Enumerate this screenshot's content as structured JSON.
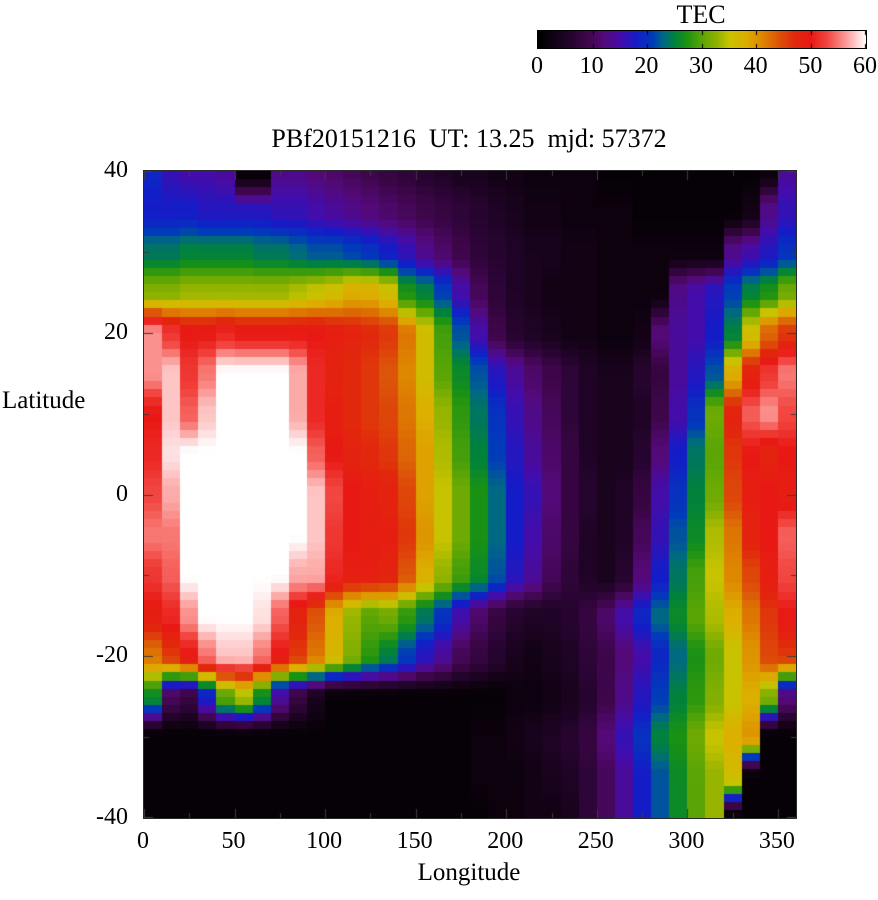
{
  "title": "PBf20151216  UT: 13.25  mjd: 57372",
  "colorbar": {
    "label": "TEC",
    "min": 0,
    "max": 60,
    "tick_labels": [
      "0",
      "10",
      "20",
      "30",
      "40",
      "50",
      "60"
    ],
    "tick_values": [
      0,
      10,
      20,
      30,
      40,
      50,
      60
    ]
  },
  "axes": {
    "x": {
      "label": "Longitude",
      "min": 0,
      "max": 360,
      "major_tick_values": [
        0,
        50,
        100,
        150,
        200,
        250,
        300,
        350
      ],
      "major_tick_labels": [
        "0",
        "50",
        "100",
        "150",
        "200",
        "250",
        "300",
        "350"
      ],
      "minor_step": 25
    },
    "y": {
      "label": "Latitude",
      "min": -40,
      "max": 40,
      "major_tick_values": [
        40,
        20,
        0,
        -20,
        -40
      ],
      "major_tick_labels": [
        "40",
        "20",
        "0",
        "-20",
        "-40"
      ],
      "minor_step": 10
    }
  },
  "chart_data": {
    "type": "heatmap",
    "title": "PBf20151216  UT: 13.25  mjd: 57372",
    "xlabel": "Longitude",
    "ylabel": "Latitude",
    "colorbar_label": "TEC",
    "xlim": [
      0,
      360
    ],
    "ylim": [
      -40,
      40
    ],
    "zlim": [
      0,
      60
    ],
    "units": "TECU",
    "lon_step": 10,
    "lat_rows": [
      40,
      35,
      30,
      25,
      20,
      15,
      10,
      5,
      0,
      -5,
      -10,
      -15,
      -20,
      -25,
      -30,
      -35,
      -40
    ],
    "values": [
      [
        19,
        16,
        15,
        15,
        14,
        1,
        1,
        13,
        13,
        12,
        11,
        10,
        9,
        8,
        7,
        6,
        5,
        4,
        4,
        3,
        3,
        2,
        2,
        2,
        2,
        1,
        1,
        1,
        1,
        1,
        1,
        1,
        1,
        1,
        2,
        14
      ],
      [
        18,
        18,
        18,
        17,
        17,
        17,
        17,
        16,
        16,
        15,
        14,
        13,
        12,
        11,
        10,
        9,
        8,
        7,
        6,
        5,
        4,
        3,
        3,
        2,
        2,
        2,
        2,
        1,
        1,
        1,
        1,
        1,
        1,
        3,
        13,
        16
      ],
      [
        24,
        24,
        25,
        25,
        25,
        25,
        24,
        24,
        23,
        22,
        22,
        21,
        20,
        18,
        16,
        13,
        11,
        9,
        7,
        6,
        5,
        4,
        4,
        3,
        3,
        2,
        2,
        2,
        2,
        2,
        2,
        2,
        13,
        15,
        17,
        20
      ],
      [
        32,
        32,
        33,
        33,
        33,
        33,
        33,
        33,
        34,
        35,
        36,
        38,
        38,
        36,
        27,
        25,
        21,
        15,
        10,
        7,
        5,
        4,
        3,
        3,
        3,
        2,
        2,
        2,
        2,
        13,
        15,
        17,
        21,
        25,
        27,
        31
      ],
      [
        56,
        52,
        50,
        50,
        51,
        50,
        50,
        50,
        50,
        50,
        49,
        48,
        47,
        46,
        42,
        36,
        29,
        22,
        15,
        9,
        6,
        5,
        4,
        3,
        3,
        2,
        2,
        3,
        12,
        14,
        15,
        18,
        25,
        36,
        43,
        46
      ],
      [
        56,
        58,
        52,
        55,
        60,
        60,
        60,
        60,
        57,
        51,
        48,
        47,
        46,
        44,
        41,
        36,
        30,
        26,
        22,
        17,
        14,
        11,
        9,
        7,
        5,
        4,
        4,
        6,
        8,
        14,
        17,
        22,
        38,
        48,
        52,
        55
      ],
      [
        50,
        58,
        54,
        58,
        60,
        60,
        60,
        60,
        57,
        51,
        49,
        47,
        46,
        45,
        42,
        38,
        33,
        28,
        24,
        20,
        16,
        13,
        10,
        7,
        5,
        4,
        4,
        5,
        9,
        15,
        20,
        31,
        48,
        54,
        56,
        53
      ],
      [
        51,
        59,
        60,
        60,
        60,
        60,
        60,
        60,
        60,
        54,
        50,
        48,
        47,
        46,
        43,
        39,
        34,
        29,
        25,
        21,
        17,
        14,
        11,
        8,
        5,
        4,
        4,
        6,
        12,
        18,
        24,
        30,
        46,
        50,
        48,
        50
      ],
      [
        53,
        57,
        60,
        60,
        60,
        60,
        60,
        60,
        60,
        58,
        53,
        50,
        49,
        48,
        45,
        39,
        35,
        31,
        27,
        23,
        18,
        16,
        12,
        8,
        6,
        4,
        5,
        8,
        15,
        20,
        25,
        31,
        45,
        49,
        50,
        49
      ],
      [
        55,
        55,
        60,
        60,
        60,
        60,
        60,
        60,
        60,
        58,
        52,
        50,
        49,
        49,
        46,
        40,
        35,
        31,
        27,
        23,
        18,
        15,
        11,
        8,
        5,
        4,
        5,
        10,
        16,
        22,
        26,
        34,
        42,
        48,
        50,
        54
      ],
      [
        52,
        54,
        60,
        60,
        60,
        60,
        60,
        60,
        57,
        57,
        51,
        49,
        49,
        48,
        44,
        38,
        33,
        29,
        26,
        22,
        17,
        14,
        10,
        7,
        5,
        4,
        6,
        12,
        18,
        24,
        29,
        35,
        41,
        45,
        49,
        53
      ],
      [
        49,
        51,
        56,
        60,
        60,
        60,
        59,
        54,
        48,
        44,
        38,
        33,
        30,
        31,
        28,
        24,
        20,
        15,
        11,
        8,
        6,
        5,
        5,
        6,
        8,
        11,
        15,
        19,
        23,
        26,
        30,
        34,
        38,
        42,
        46,
        50
      ],
      [
        42,
        46,
        50,
        55,
        58,
        58,
        55,
        50,
        46,
        42,
        37,
        32,
        28,
        25,
        21,
        17,
        14,
        10,
        8,
        6,
        4,
        3,
        4,
        5,
        7,
        9,
        12,
        15,
        19,
        23,
        27,
        31,
        35,
        40,
        45,
        46
      ],
      [
        26,
        10,
        8,
        18,
        30,
        34,
        26,
        14,
        8,
        4,
        1,
        1,
        1,
        1,
        1,
        1,
        1,
        1,
        1,
        1,
        2,
        2,
        3,
        4,
        6,
        9,
        13,
        17,
        21,
        25,
        28,
        32,
        35,
        38,
        32,
        12
      ],
      [
        1,
        1,
        1,
        1,
        1,
        1,
        1,
        1,
        1,
        1,
        1,
        1,
        1,
        1,
        1,
        1,
        1,
        1,
        2,
        2,
        3,
        4,
        5,
        6,
        8,
        12,
        16,
        20,
        25,
        27,
        31,
        35,
        38,
        40,
        1,
        1
      ],
      [
        1,
        1,
        1,
        1,
        1,
        1,
        1,
        1,
        1,
        1,
        1,
        1,
        1,
        1,
        1,
        1,
        1,
        1,
        2,
        2,
        2,
        3,
        4,
        5,
        7,
        10,
        14,
        18,
        22,
        26,
        30,
        33,
        36,
        1,
        1,
        1
      ],
      [
        1,
        1,
        1,
        1,
        1,
        1,
        1,
        1,
        1,
        1,
        1,
        1,
        1,
        1,
        1,
        1,
        1,
        1,
        1,
        2,
        2,
        3,
        3,
        4,
        7,
        10,
        14,
        18,
        22,
        26,
        30,
        33,
        1,
        1,
        1,
        1
      ]
    ],
    "palette": [
      [
        0,
        0,
        0,
        0
      ],
      [
        3,
        18,
        2,
        20
      ],
      [
        6,
        38,
        4,
        47
      ],
      [
        9,
        62,
        6,
        74
      ],
      [
        12,
        84,
        9,
        120
      ],
      [
        15,
        68,
        12,
        170
      ],
      [
        18,
        20,
        28,
        200
      ],
      [
        21,
        0,
        60,
        185
      ],
      [
        23,
        0,
        105,
        130
      ],
      [
        25,
        0,
        130,
        60
      ],
      [
        27,
        25,
        145,
        20
      ],
      [
        30,
        90,
        165,
        5
      ],
      [
        33,
        150,
        180,
        0
      ],
      [
        35,
        200,
        195,
        0
      ],
      [
        38,
        220,
        175,
        0
      ],
      [
        41,
        222,
        135,
        0
      ],
      [
        44,
        220,
        85,
        8
      ],
      [
        47,
        225,
        40,
        12
      ],
      [
        50,
        232,
        25,
        20
      ],
      [
        53,
        242,
        70,
        65
      ],
      [
        55,
        248,
        120,
        115
      ],
      [
        57,
        252,
        170,
        168
      ],
      [
        59,
        254,
        225,
        225
      ],
      [
        60,
        255,
        255,
        255
      ]
    ],
    "grid_lines": false,
    "legend_position": "top-right-colorbar"
  }
}
